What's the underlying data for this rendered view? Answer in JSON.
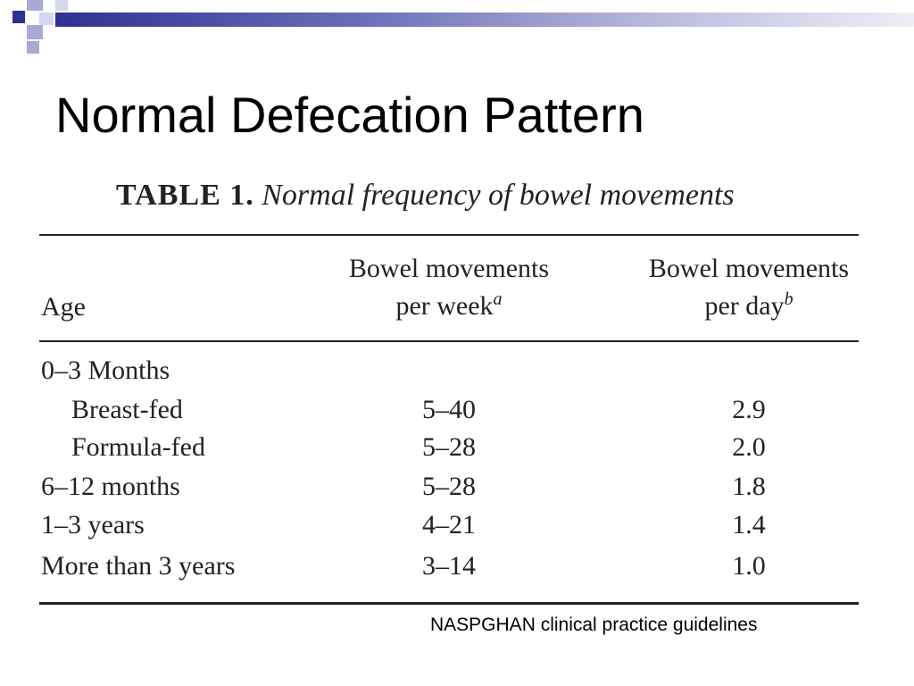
{
  "theme": {
    "accent": "#2e3192",
    "accent_light": "#a8a9d6"
  },
  "slide": {
    "title": "Normal Defecation Pattern"
  },
  "table": {
    "caption_number": "TABLE 1.",
    "caption_text": "Normal frequency of bowel movements",
    "headers": {
      "age": "Age",
      "week_line1": "Bowel movements",
      "week_line2": "per week",
      "week_sup": "a",
      "day_line1": "Bowel movements",
      "day_line2": "per day",
      "day_sup": "b"
    },
    "rows": [
      {
        "age": "0–3 Months",
        "week": "",
        "day": "",
        "indent": false
      },
      {
        "age": "Breast-fed",
        "week": "5–40",
        "day": "2.9",
        "indent": true
      },
      {
        "age": "Formula-fed",
        "week": "5–28",
        "day": "2.0",
        "indent": true
      },
      {
        "age": "6–12 months",
        "week": "5–28",
        "day": "1.8",
        "indent": false
      },
      {
        "age": "1–3 years",
        "week": "4–21",
        "day": "1.4",
        "indent": false
      },
      {
        "age": "More than 3 years",
        "week": "3–14",
        "day": "1.0",
        "indent": false
      }
    ]
  },
  "source": "NASPGHAN clinical practice guidelines"
}
